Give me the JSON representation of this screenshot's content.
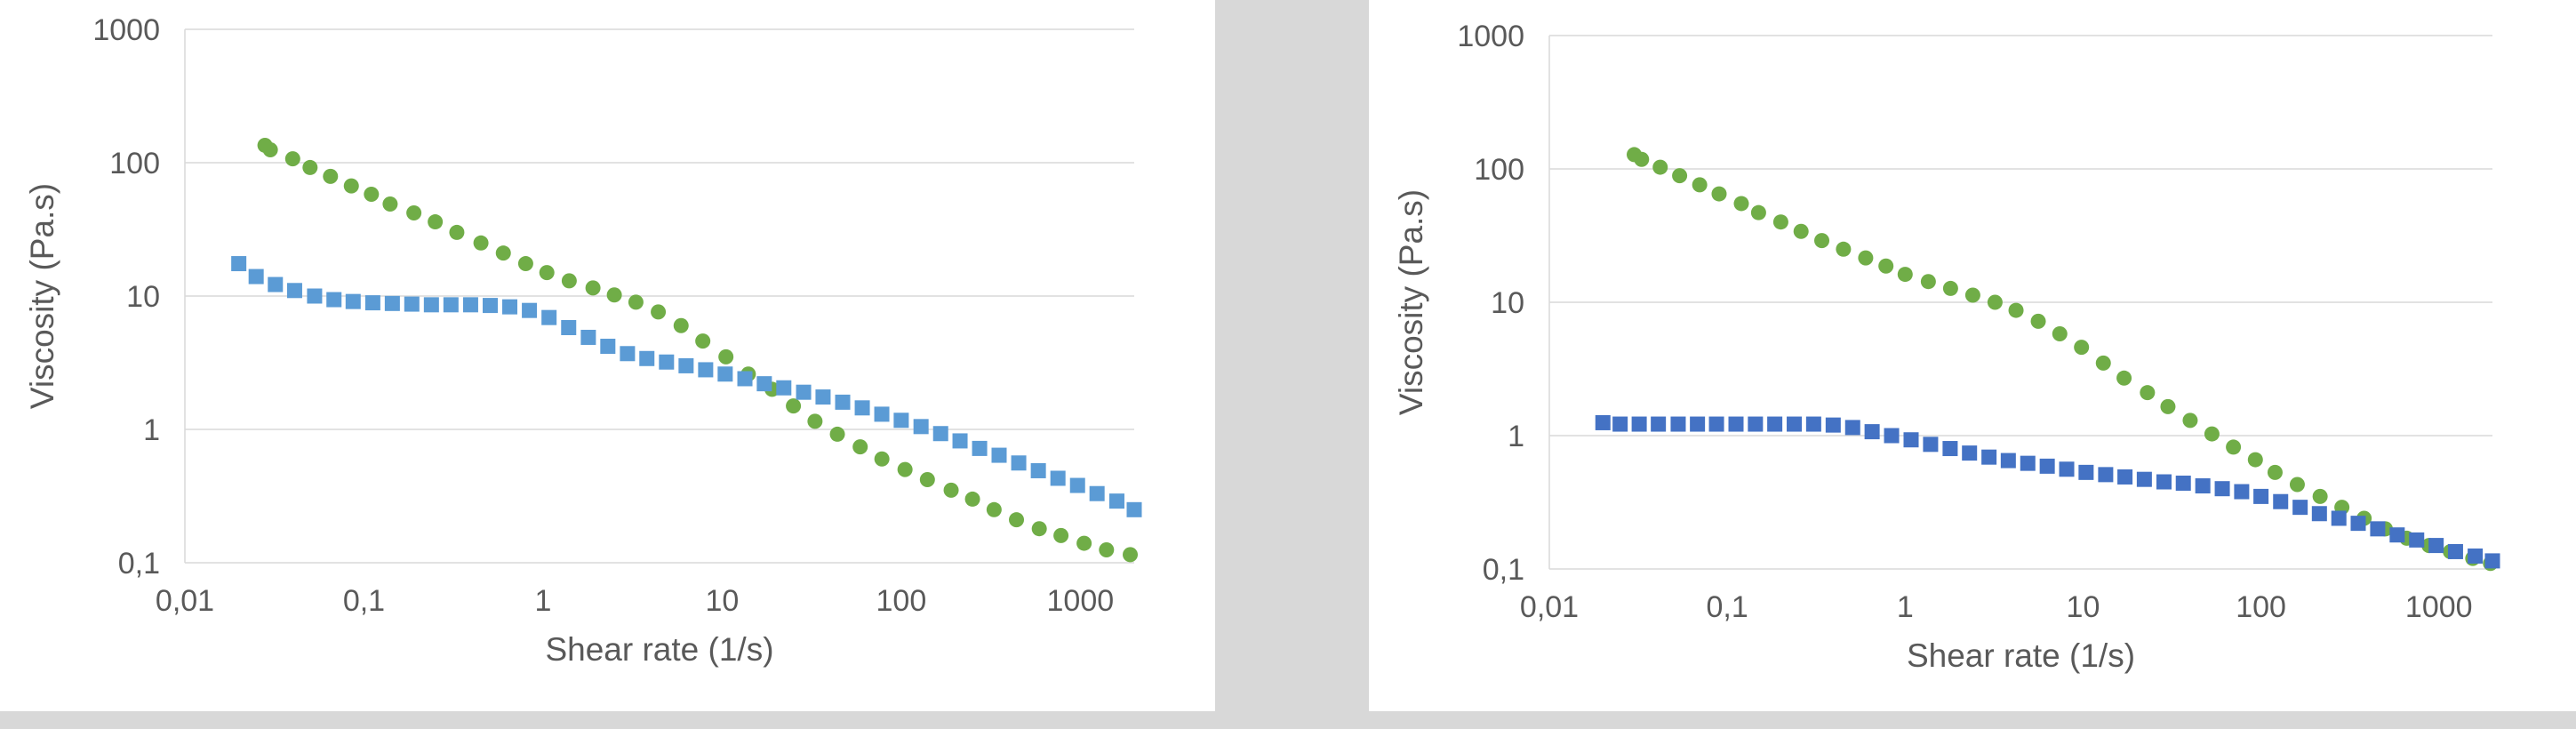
{
  "chart_data": [
    {
      "type": "scatter",
      "xscale": "log",
      "yscale": "log",
      "xlim": [
        0.01,
        2000
      ],
      "ylim": [
        0.1,
        1000
      ],
      "grid": "horizontal",
      "xlabel": "Shear rate (1/s)",
      "ylabel": "Viscosity (Pa.s)",
      "xtick_labels": [
        "0,01",
        "0,1",
        "1",
        "10",
        "100",
        "1000"
      ],
      "ytick_labels": [
        "0,1",
        "1",
        "10",
        "100",
        "1000"
      ],
      "series": [
        {
          "marker": "circle",
          "color": "#70ad47",
          "x": [
            0.028,
            0.03,
            0.04,
            0.05,
            0.065,
            0.085,
            0.11,
            0.14,
            0.19,
            0.25,
            0.33,
            0.45,
            0.6,
            0.8,
            1.05,
            1.4,
            1.9,
            2.5,
            3.3,
            4.4,
            5.9,
            7.8,
            10.5,
            14,
            19,
            25,
            33,
            44,
            59,
            78,
            105,
            140,
            190,
            250,
            330,
            440,
            590,
            780,
            1050,
            1400,
            1900
          ],
          "y": [
            135,
            125,
            107,
            92,
            79,
            67,
            58,
            49,
            42,
            36,
            30,
            25,
            21,
            17.5,
            15,
            13,
            11.5,
            10.2,
            9,
            7.6,
            6,
            4.6,
            3.5,
            2.6,
            2,
            1.5,
            1.15,
            0.92,
            0.74,
            0.6,
            0.5,
            0.42,
            0.35,
            0.3,
            0.25,
            0.21,
            0.18,
            0.16,
            0.14,
            0.125,
            0.115
          ]
        },
        {
          "marker": "square",
          "color": "#5b9bd5",
          "x": [
            0.02,
            0.025,
            0.032,
            0.041,
            0.053,
            0.068,
            0.087,
            0.112,
            0.144,
            0.185,
            0.238,
            0.306,
            0.394,
            0.507,
            0.652,
            0.839,
            1.08,
            1.39,
            1.79,
            2.3,
            2.96,
            3.8,
            4.89,
            6.29,
            8.09,
            10.4,
            13.4,
            17.2,
            22.1,
            28.5,
            36.6,
            47.1,
            60.6,
            77.9,
            100,
            129,
            166,
            213,
            274,
            352,
            453,
            583,
            750,
            965,
            1240,
            1600,
            2000
          ],
          "y": [
            17.5,
            14,
            12.2,
            11,
            10,
            9.4,
            9.1,
            8.9,
            8.8,
            8.7,
            8.6,
            8.6,
            8.6,
            8.5,
            8.3,
            7.8,
            6.9,
            5.8,
            4.9,
            4.2,
            3.7,
            3.4,
            3.2,
            3.0,
            2.8,
            2.6,
            2.4,
            2.2,
            2.05,
            1.9,
            1.75,
            1.6,
            1.45,
            1.3,
            1.17,
            1.05,
            0.93,
            0.82,
            0.72,
            0.64,
            0.56,
            0.49,
            0.43,
            0.38,
            0.33,
            0.29,
            0.25
          ]
        }
      ]
    },
    {
      "type": "scatter",
      "xscale": "log",
      "yscale": "log",
      "xlim": [
        0.01,
        2000
      ],
      "ylim": [
        0.1,
        1000
      ],
      "grid": "horizontal",
      "xlabel": "Shear rate (1/s)",
      "ylabel": "Viscosity (Pa.s)",
      "xtick_labels": [
        "0,01",
        "0,1",
        "1",
        "10",
        "100",
        "1000"
      ],
      "ytick_labels": [
        "0,1",
        "1",
        "10",
        "100",
        "1000"
      ],
      "series": [
        {
          "marker": "circle",
          "color": "#70ad47",
          "x": [
            0.03,
            0.033,
            0.042,
            0.054,
            0.07,
            0.09,
            0.12,
            0.15,
            0.2,
            0.26,
            0.34,
            0.45,
            0.6,
            0.78,
            1.0,
            1.35,
            1.8,
            2.4,
            3.2,
            4.2,
            5.6,
            7.4,
            9.8,
            13,
            17,
            23,
            30,
            40,
            53,
            70,
            93,
            120,
            160,
            215,
            285,
            380,
            500,
            660,
            880,
            1160,
            1550,
            1950
          ],
          "y": [
            128,
            118,
            103,
            89,
            76,
            65,
            55,
            47,
            40,
            34,
            29,
            25,
            21.5,
            18.7,
            16.2,
            14.3,
            12.7,
            11.3,
            10,
            8.7,
            7.2,
            5.8,
            4.6,
            3.5,
            2.7,
            2.1,
            1.65,
            1.3,
            1.03,
            0.82,
            0.66,
            0.53,
            0.43,
            0.35,
            0.29,
            0.24,
            0.2,
            0.17,
            0.15,
            0.135,
            0.12,
            0.11
          ]
        },
        {
          "marker": "square",
          "color": "#4472c4",
          "x": [
            0.02,
            0.025,
            0.032,
            0.041,
            0.053,
            0.068,
            0.087,
            0.112,
            0.144,
            0.185,
            0.238,
            0.306,
            0.394,
            0.507,
            0.652,
            0.839,
            1.08,
            1.39,
            1.79,
            2.3,
            2.96,
            3.8,
            4.89,
            6.29,
            8.09,
            10.4,
            13.4,
            17.2,
            22.1,
            28.5,
            36.6,
            47.1,
            60.6,
            77.9,
            100,
            129,
            166,
            213,
            274,
            352,
            453,
            583,
            750,
            965,
            1240,
            1600,
            2000
          ],
          "y": [
            1.25,
            1.22,
            1.22,
            1.22,
            1.22,
            1.22,
            1.22,
            1.22,
            1.22,
            1.22,
            1.22,
            1.22,
            1.2,
            1.15,
            1.07,
            1.0,
            0.93,
            0.86,
            0.8,
            0.74,
            0.69,
            0.65,
            0.62,
            0.59,
            0.56,
            0.53,
            0.51,
            0.49,
            0.47,
            0.45,
            0.44,
            0.42,
            0.4,
            0.38,
            0.35,
            0.32,
            0.29,
            0.26,
            0.24,
            0.22,
            0.2,
            0.18,
            0.165,
            0.15,
            0.135,
            0.125,
            0.115
          ]
        }
      ]
    }
  ]
}
